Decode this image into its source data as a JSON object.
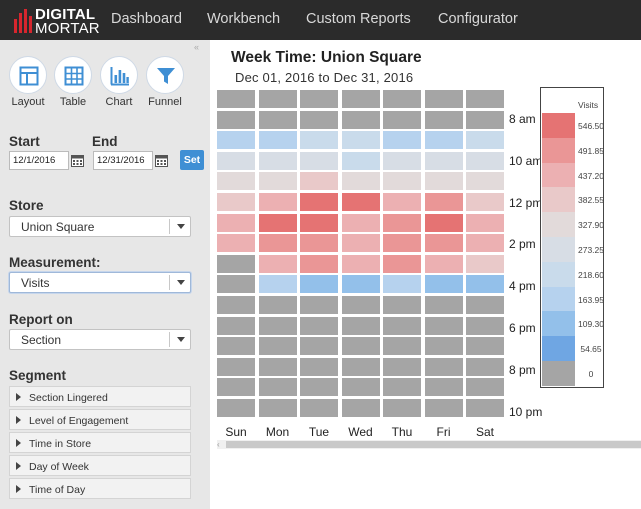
{
  "brand": {
    "line1": "DIGITAL",
    "line2": "MORTAR",
    "accent": "#d7262e"
  },
  "nav": {
    "items": [
      "Dashboard",
      "Workbench",
      "Custom Reports",
      "Configurator"
    ]
  },
  "sidebar": {
    "views": [
      {
        "label": "Layout",
        "icon": "layout-icon"
      },
      {
        "label": "Table",
        "icon": "table-icon"
      },
      {
        "label": "Chart",
        "icon": "chart-icon"
      },
      {
        "label": "Funnel",
        "icon": "funnel-icon"
      }
    ],
    "start_label": "Start",
    "end_label": "End",
    "start_value": "12/1/2016",
    "end_value": "12/31/2016",
    "set_label": "Set",
    "store_label": "Store",
    "store_value": "Union Square",
    "measurement_label": "Measurement:",
    "measurement_value": "Visits",
    "report_on_label": "Report on",
    "report_on_value": "Section",
    "segment_label": "Segment",
    "segments": [
      "Section Lingered",
      "Level of Engagement",
      "Time in Store",
      "Day of Week",
      "Time of Day"
    ]
  },
  "chart_data": {
    "type": "heatmap",
    "title": "Week Time: Union Square",
    "subtitle": "Dec 01, 2016 to Dec 31, 2016",
    "x": [
      "Sun",
      "Mon",
      "Tue",
      "Wed",
      "Thu",
      "Fri",
      "Sat"
    ],
    "hour_labels": [
      "8 am",
      "10 am",
      "12 pm",
      "2 pm",
      "4 pm",
      "6 pm",
      "8 pm",
      "10 pm"
    ],
    "legend_title": "Visits",
    "legend_ticks": [
      "546.50",
      "491.85",
      "437.20",
      "382.55",
      "327.90",
      "273.25",
      "218.60",
      "163.95",
      "109.30",
      "54.65",
      "0"
    ],
    "legend_colors": [
      "#e57373",
      "#ea9696",
      "#ecb0b2",
      "#e9c9c9",
      "#e2dada",
      "#d7dde5",
      "#c9dbeb",
      "#b6d2ee",
      "#93c0ea",
      "#6fa6e3",
      "#a5a5a5"
    ],
    "values": [
      [
        0,
        0,
        0,
        0,
        0,
        0,
        0
      ],
      [
        0,
        0,
        0,
        0,
        0,
        0,
        0
      ],
      [
        140,
        140,
        200,
        210,
        140,
        190,
        200
      ],
      [
        270,
        270,
        300,
        230,
        270,
        270,
        280
      ],
      [
        320,
        320,
        360,
        340,
        340,
        330,
        330
      ],
      [
        370,
        420,
        520,
        530,
        430,
        470,
        380
      ],
      [
        420,
        520,
        530,
        430,
        510,
        520,
        420
      ],
      [
        420,
        500,
        490,
        450,
        470,
        470,
        440
      ],
      [
        0,
        440,
        470,
        440,
        490,
        420,
        380
      ],
      [
        0,
        160,
        120,
        100,
        140,
        110,
        120
      ],
      [
        0,
        0,
        0,
        0,
        0,
        0,
        0
      ],
      [
        0,
        0,
        0,
        0,
        0,
        0,
        0
      ],
      [
        0,
        0,
        0,
        0,
        0,
        0,
        0
      ],
      [
        0,
        0,
        0,
        0,
        0,
        0,
        0
      ],
      [
        0,
        0,
        0,
        0,
        0,
        0,
        0
      ],
      [
        0,
        0,
        0,
        0,
        0,
        0,
        0
      ]
    ]
  }
}
